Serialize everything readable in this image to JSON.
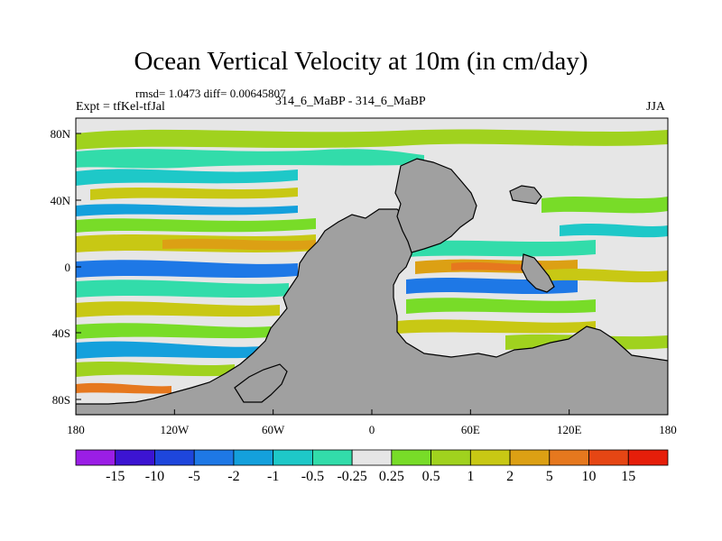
{
  "chart_data": {
    "type": "heatmap",
    "title": "Ocean Vertical Velocity at 10m (in cm/day)",
    "stats_text": "rmsd= 1.0473 diff= 0.00645807",
    "center_label": "314_6_MaBP - 314_6_MaBP",
    "left_label": "Expt = tfKel-tfJal",
    "right_label": "JJA",
    "x_ticks": [
      "180",
      "120W",
      "60W",
      "0",
      "60E",
      "120E",
      "180"
    ],
    "y_ticks": [
      "80N",
      "40N",
      "0",
      "40S",
      "80S"
    ],
    "colorbar": {
      "labels": [
        "-15",
        "-10",
        "-5",
        "-2",
        "-1",
        "-0.5",
        "-0.25",
        "0.25",
        "0.5",
        "1",
        "2",
        "5",
        "10",
        "15"
      ],
      "colors": [
        "#9b1ee6",
        "#3c14d2",
        "#1e46dc",
        "#1e78e6",
        "#14a0dc",
        "#1ec8c8",
        "#32dcaa",
        "#e6e6e6",
        "#78dc28",
        "#a0d21e",
        "#c8c814",
        "#dca014",
        "#e6781e",
        "#e64614",
        "#e61e0a"
      ]
    },
    "land_color": "#a0a0a0"
  }
}
